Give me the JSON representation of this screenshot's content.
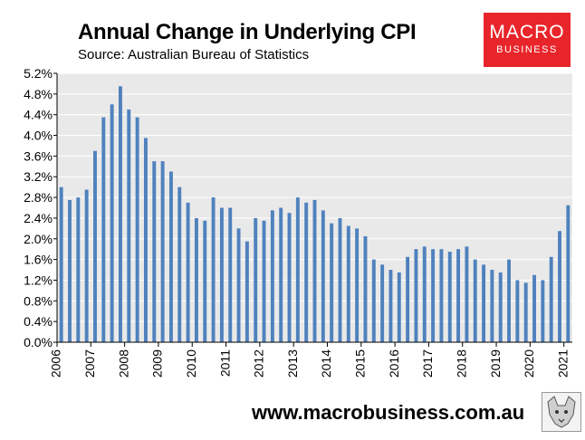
{
  "header": {
    "title": "Annual Change in Underlying CPI",
    "subtitle": "Source: Australian Bureau of Statistics"
  },
  "logo": {
    "line1": "MACRO",
    "line2": "BUSINESS",
    "color": "#e8252a"
  },
  "footer": {
    "url": "www.macrobusiness.com.au"
  },
  "chart_data": {
    "type": "bar",
    "title": "Annual Change in Underlying CPI",
    "xlabel": "",
    "ylabel": "",
    "ylim": [
      0,
      5.2
    ],
    "yticks": [
      "0.0%",
      "0.4%",
      "0.8%",
      "1.2%",
      "1.6%",
      "2.0%",
      "2.4%",
      "2.8%",
      "3.2%",
      "3.6%",
      "4.0%",
      "4.4%",
      "4.8%",
      "5.2%"
    ],
    "xtick_labels": [
      "2006",
      "2007",
      "2008",
      "2009",
      "2010",
      "2011",
      "2012",
      "2013",
      "2014",
      "2015",
      "2016",
      "2017",
      "2018",
      "2019",
      "2020",
      "2021"
    ],
    "grid": true,
    "bar_color": "#4f81bd",
    "series": [
      {
        "name": "Underlying CPI, annual % change",
        "values": [
          3.0,
          2.75,
          2.8,
          2.95,
          3.7,
          4.35,
          4.6,
          4.95,
          4.5,
          4.35,
          3.95,
          3.5,
          3.5,
          3.3,
          3.0,
          2.7,
          2.4,
          2.35,
          2.8,
          2.6,
          2.6,
          2.2,
          1.95,
          2.4,
          2.35,
          2.55,
          2.6,
          2.5,
          2.8,
          2.7,
          2.75,
          2.55,
          2.3,
          2.4,
          2.25,
          2.2,
          2.05,
          1.6,
          1.5,
          1.4,
          1.35,
          1.65,
          1.8,
          1.85,
          1.8,
          1.8,
          1.75,
          1.8,
          1.85,
          1.6,
          1.5,
          1.4,
          1.35,
          1.6,
          1.2,
          1.15,
          1.3,
          1.2,
          1.65,
          2.15,
          2.65
        ]
      }
    ]
  }
}
